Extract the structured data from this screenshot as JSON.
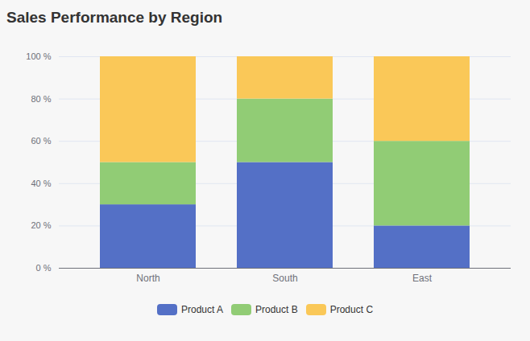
{
  "chart_data": {
    "type": "bar",
    "title": "Sales Performance by Region",
    "stacked": true,
    "grid": true,
    "legend": "bottom",
    "categories": [
      "North",
      "South",
      "East"
    ],
    "series": [
      {
        "name": "Product A",
        "color": "#5470c6",
        "values": [
          30,
          50,
          20
        ]
      },
      {
        "name": "Product B",
        "color": "#91cc75",
        "values": [
          20,
          30,
          40
        ]
      },
      {
        "name": "Product C",
        "color": "#fac858",
        "values": [
          50,
          20,
          40
        ]
      }
    ],
    "ylim": [
      0,
      100
    ],
    "yticks": [
      {
        "value": 0,
        "label": "0 %"
      },
      {
        "value": 20,
        "label": "20 %"
      },
      {
        "value": 40,
        "label": "40 %"
      },
      {
        "value": 60,
        "label": "60 %"
      },
      {
        "value": 80,
        "label": "80 %"
      },
      {
        "value": 100,
        "label": "100 %"
      }
    ]
  }
}
